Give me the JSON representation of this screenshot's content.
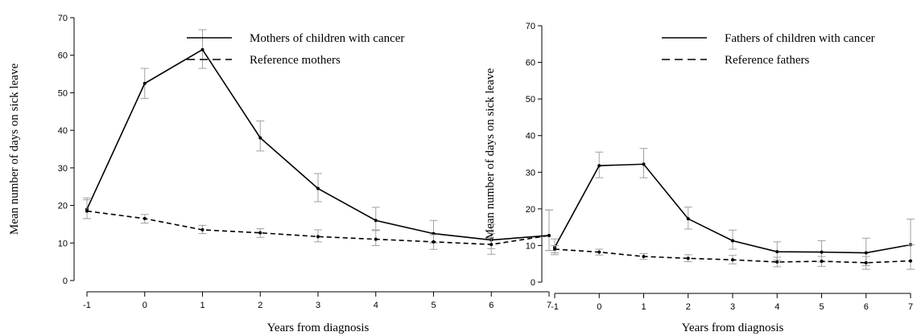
{
  "chart_data": [
    {
      "type": "line",
      "title": "",
      "xlabel": "Years from diagnosis",
      "ylabel": "Mean number of days on sick leave",
      "x": [
        -1,
        0,
        1,
        2,
        3,
        4,
        5,
        6,
        7
      ],
      "xticks": [
        "-1",
        "0",
        "1",
        "2",
        "3",
        "4",
        "5",
        "6",
        "7"
      ],
      "yticks": [
        "0",
        "10",
        "20",
        "30",
        "40",
        "50",
        "60",
        "70"
      ],
      "xlim": [
        -1,
        7
      ],
      "ylim": [
        0,
        70
      ],
      "grid": false,
      "legend_position": "top-right",
      "error_bar_color": "#a0a0a0",
      "series": [
        {
          "name": "Mothers of children with cancer",
          "style": "solid",
          "values": [
            19.0,
            52.5,
            61.5,
            38.0,
            24.5,
            16.0,
            12.5,
            10.8,
            12.0
          ],
          "err_low": [
            16.5,
            48.5,
            56.5,
            34.5,
            21.0,
            13.5,
            10.0,
            8.5,
            8.0
          ],
          "err_high": [
            22.0,
            56.5,
            66.8,
            42.5,
            28.5,
            19.5,
            16.0,
            15.0,
            18.8
          ]
        },
        {
          "name": "Reference mothers",
          "style": "dashed",
          "values": [
            18.5,
            16.5,
            13.5,
            12.7,
            11.7,
            11.0,
            10.3,
            9.6,
            12.0
          ],
          "err_low": [
            16.5,
            15.3,
            12.5,
            11.5,
            10.3,
            9.3,
            8.3,
            7.0,
            8.0
          ],
          "err_high": [
            21.5,
            17.6,
            14.7,
            13.8,
            13.5,
            13.3,
            12.2,
            12.5,
            18.8
          ]
        }
      ]
    },
    {
      "type": "line",
      "title": "",
      "xlabel": "Years from diagnosis",
      "ylabel": "Mean number of days on sick leave",
      "x": [
        -1,
        0,
        1,
        2,
        3,
        4,
        5,
        6,
        7
      ],
      "xticks": [
        "-1",
        "0",
        "1",
        "2",
        "3",
        "4",
        "5",
        "6",
        "7"
      ],
      "yticks": [
        "0",
        "10",
        "20",
        "30",
        "40",
        "50",
        "60",
        "70"
      ],
      "xlim": [
        -1,
        7
      ],
      "ylim": [
        0,
        70
      ],
      "grid": false,
      "legend_position": "top-right",
      "error_bar_color": "#a0a0a0",
      "series": [
        {
          "name": "Fathers of children with cancer",
          "style": "solid",
          "values": [
            9.5,
            31.8,
            32.2,
            17.3,
            11.3,
            8.3,
            8.2,
            8.0,
            10.2
          ],
          "err_low": [
            7.5,
            28.5,
            28.5,
            14.5,
            9.0,
            6.0,
            5.5,
            4.5,
            3.5
          ],
          "err_high": [
            11.8,
            35.5,
            36.5,
            20.5,
            14.2,
            11.0,
            11.3,
            12.0,
            17.2
          ]
        },
        {
          "name": "Reference fathers",
          "style": "dashed",
          "values": [
            9.0,
            8.2,
            7.0,
            6.5,
            6.1,
            5.5,
            5.7,
            5.3,
            5.8
          ],
          "err_low": [
            8.0,
            7.4,
            6.2,
            5.6,
            5.0,
            4.2,
            4.3,
            3.5,
            3.5
          ],
          "err_high": [
            10.0,
            9.0,
            7.8,
            7.5,
            7.3,
            6.8,
            7.0,
            7.0,
            10.2
          ]
        }
      ]
    }
  ]
}
